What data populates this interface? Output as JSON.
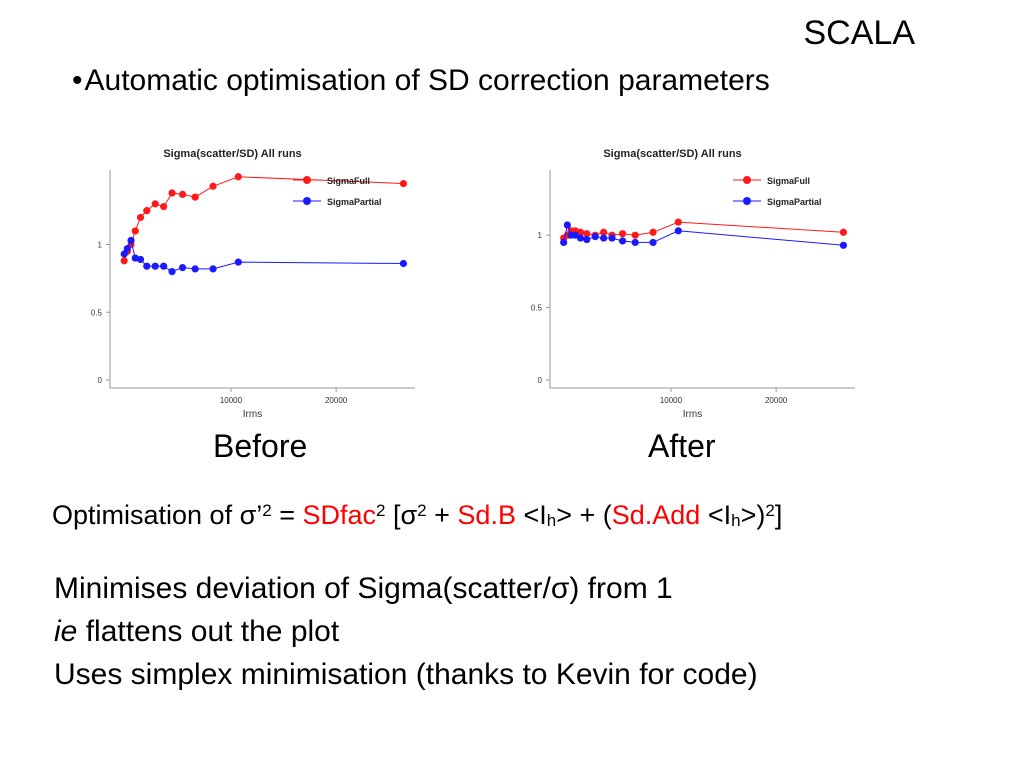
{
  "slide": {
    "header": "SCALA",
    "bullet_symbol": "•",
    "bullet": "Automatic optimisation of SD correction parameters"
  },
  "formula": {
    "prefix": "Optimisation of σ’",
    "exp1": "2",
    "eq": " = ",
    "sdfac": "SDfac",
    "exp2": "2",
    "open": " [σ",
    "exp3": "2",
    "plus1": " + ",
    "sdb": "Sd.B",
    "ih1_open": " <I",
    "ih1_sub": "h",
    "ih1_close": "> + (",
    "sdadd": "Sd.Add",
    "ih2_open": " <I",
    "ih2_sub": "h",
    "ih2_close": ">)",
    "exp4": "2",
    "close": "]"
  },
  "body": {
    "line1": "Minimises deviation of Sigma(scatter/σ) from 1",
    "line2_em": "ie",
    "line2_rest": " flattens out the plot",
    "line3": "Uses simplex minimisation (thanks to Kevin for code)"
  },
  "colors": {
    "full": "#ff1a1a",
    "partial": "#1a1aff",
    "axis": "#999999"
  },
  "chart_data": [
    {
      "type": "line",
      "label": "Before",
      "title": "Sigma(scatter/SD) All runs",
      "xlabel": "Irms",
      "ylabel": "",
      "xlim": [
        -1500,
        27500
      ],
      "ylim": [
        0,
        1.55
      ],
      "xticks": [
        10000,
        20000
      ],
      "yticks": [
        0,
        0.5,
        1
      ],
      "xtick_labels": [
        "10000",
        "20000"
      ],
      "ytick_labels": [
        "0",
        "0.5",
        "1"
      ],
      "legend_position": "top-right",
      "series": [
        {
          "name": "SigmaFull",
          "color": "#ff1a1a",
          "x": [
            -150,
            150,
            500,
            900,
            1400,
            2000,
            2800,
            3600,
            4400,
            5400,
            6600,
            8300,
            10700,
            26400
          ],
          "y": [
            0.88,
            0.95,
            1.0,
            1.1,
            1.2,
            1.25,
            1.3,
            1.28,
            1.38,
            1.37,
            1.35,
            1.43,
            1.5,
            1.45
          ]
        },
        {
          "name": "SigmaPartial",
          "color": "#1a1aff",
          "x": [
            -150,
            150,
            500,
            900,
            1400,
            2000,
            2800,
            3600,
            4400,
            5400,
            6600,
            8300,
            10700,
            26400
          ],
          "y": [
            0.93,
            0.97,
            1.03,
            0.9,
            0.89,
            0.84,
            0.84,
            0.84,
            0.8,
            0.83,
            0.82,
            0.82,
            0.87,
            0.86
          ]
        }
      ]
    },
    {
      "type": "line",
      "label": "After",
      "title": "Sigma(scatter/SD) All runs",
      "xlabel": "Irms",
      "ylabel": "",
      "xlim": [
        -1500,
        27500
      ],
      "ylim": [
        0,
        1.45
      ],
      "xticks": [
        10000,
        20000
      ],
      "yticks": [
        0,
        0.5,
        1
      ],
      "xtick_labels": [
        "10000",
        "20000"
      ],
      "ytick_labels": [
        "0",
        "0.5",
        "1"
      ],
      "legend_position": "top-right",
      "series": [
        {
          "name": "SigmaFull",
          "color": "#ff1a1a",
          "x": [
            -200,
            150,
            500,
            900,
            1400,
            2000,
            2800,
            3600,
            4400,
            5400,
            6600,
            8300,
            10700,
            26400
          ],
          "y": [
            0.98,
            1.0,
            1.03,
            1.03,
            1.02,
            1.01,
            1.0,
            1.02,
            1.0,
            1.01,
            1.0,
            1.02,
            1.09,
            1.02
          ]
        },
        {
          "name": "SigmaPartial",
          "color": "#1a1aff",
          "x": [
            -200,
            150,
            500,
            900,
            1400,
            2000,
            2800,
            3600,
            4400,
            5400,
            6600,
            8300,
            10700,
            26400
          ],
          "y": [
            0.95,
            1.07,
            1.0,
            1.0,
            0.98,
            0.97,
            0.99,
            0.98,
            0.98,
            0.96,
            0.95,
            0.95,
            1.03,
            0.93
          ]
        }
      ]
    }
  ]
}
